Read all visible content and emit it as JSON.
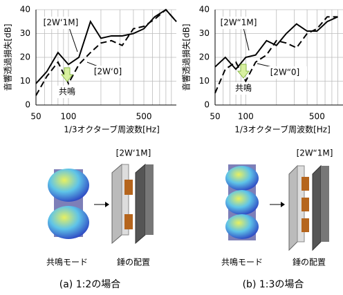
{
  "chart_data": [
    {
      "type": "line",
      "xlabel": "1/3オクターブ周波数[Hz]",
      "ylabel": "音響透過損失[dB]",
      "log_x": true,
      "grid": true,
      "x": [
        50,
        63,
        80,
        100,
        125,
        160,
        200,
        250,
        315,
        400,
        500,
        630,
        800,
        1000
      ],
      "series": [
        {
          "name": "[2W‘1M]",
          "color": "#000000",
          "dash": "solid",
          "values": [
            9,
            14,
            22,
            17,
            20,
            35,
            28,
            29,
            29,
            30,
            32,
            37,
            40,
            35
          ]
        },
        {
          "name": "[2W‘0]",
          "color": "#000000",
          "dash": "dashed",
          "values": [
            4,
            12,
            18,
            9,
            17,
            22,
            26,
            27,
            25,
            32,
            33,
            36,
            40,
            35
          ]
        }
      ],
      "xlim": [
        50,
        1000
      ],
      "ylim": [
        0,
        40
      ],
      "xticks": [
        50,
        100,
        500
      ],
      "yticks": [
        0,
        10,
        20,
        30,
        40
      ],
      "xgrid": [
        60,
        70,
        80,
        90,
        200,
        300,
        400,
        600,
        700,
        800,
        900
      ],
      "annotation": "共鳴"
    },
    {
      "type": "line",
      "xlabel": "1/3オクターブ周波数[Hz]",
      "ylabel": "音響透過損失[dB]",
      "log_x": true,
      "grid": true,
      "x": [
        50,
        63,
        80,
        100,
        125,
        160,
        200,
        250,
        315,
        400,
        500,
        630,
        800
      ],
      "series": [
        {
          "name": "[2W“1M]",
          "color": "#000000",
          "dash": "solid",
          "values": [
            16,
            20,
            15,
            20,
            21,
            27,
            25,
            30,
            34,
            31,
            31,
            35,
            37
          ]
        },
        {
          "name": "[2W“0]",
          "color": "#000000",
          "dash": "dashed",
          "values": [
            5,
            15,
            18,
            10,
            18,
            21,
            27,
            26,
            24,
            30,
            32,
            37,
            37
          ]
        }
      ],
      "xlim": [
        50,
        900
      ],
      "ylim": [
        0,
        40
      ],
      "xticks": [
        50,
        100,
        500
      ],
      "yticks": [
        0,
        10,
        20,
        30,
        40
      ],
      "xgrid": [
        60,
        70,
        80,
        90,
        200,
        300,
        400,
        600,
        700,
        800
      ],
      "annotation": "共鳴"
    }
  ],
  "panels": [
    {
      "config_label": "[2W‘1M]",
      "mode_label": "共鳴モード",
      "placement_label": "錘の配置",
      "caption": "(a) 1:2の場合"
    },
    {
      "config_label": "[2W“1M]",
      "mode_label": "共鳴モード",
      "placement_label": "錘の配置",
      "caption": "(b) 1:3の場合"
    }
  ]
}
